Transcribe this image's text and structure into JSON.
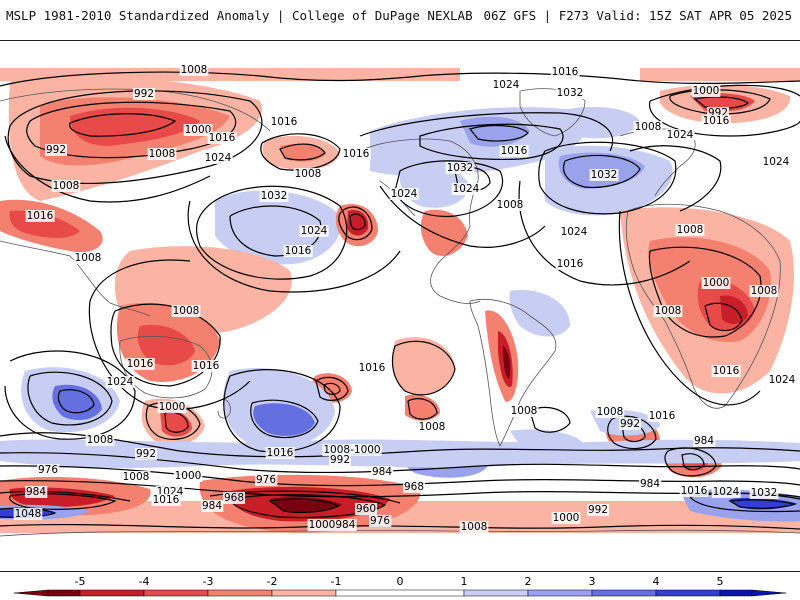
{
  "header": {
    "left_title": "MSLP 1981-2010 Standardized Anomaly | College of DuPage NEXLAB",
    "right_title": "06Z GFS | F273 Valid: 15Z SAT APR 05 2025"
  },
  "colors": {
    "neg_5": "#7a0010",
    "neg_4": "#c81e28",
    "neg_3": "#e84a4a",
    "neg_2": "#f48070",
    "neg_1": "#fbb4a4",
    "zero": "#ffffff",
    "pos_1": "#c8cdf4",
    "pos_2": "#9aa2ec",
    "pos_3": "#6470e0",
    "pos_4": "#323ed4",
    "pos_5": "#0a14b4",
    "isobar": "#000000",
    "coastline": "#555555"
  },
  "isobar_labels": [
    {
      "id": "iso-1008-north-pacific",
      "text": "1008"
    },
    {
      "id": "iso-992-asia",
      "text": "992"
    },
    {
      "id": "iso-992-asia-west",
      "text": "992"
    },
    {
      "id": "iso-1000-asia",
      "text": "1000"
    },
    {
      "id": "iso-1016-asia",
      "text": "1016"
    },
    {
      "id": "iso-1008-asia-a",
      "text": "1008"
    },
    {
      "id": "iso-1008-asia-b",
      "text": "1008"
    },
    {
      "id": "iso-1016-asia-b",
      "text": "1016"
    },
    {
      "id": "iso-1008-asia-c",
      "text": "1008"
    },
    {
      "id": "iso-1024-pacific",
      "text": "1024"
    },
    {
      "id": "iso-1032-pacific",
      "text": "1032"
    },
    {
      "id": "iso-1008-pacific-a",
      "text": "1008"
    },
    {
      "id": "iso-1016-pacific-a",
      "text": "1016"
    },
    {
      "id": "iso-1016-pacific-b",
      "text": "1016"
    },
    {
      "id": "iso-1024-pacific-b",
      "text": "1024"
    },
    {
      "id": "iso-1016-pacific-c",
      "text": "1016"
    },
    {
      "id": "iso-1016-arctic",
      "text": "1016"
    },
    {
      "id": "iso-1024-arctic",
      "text": "1024"
    },
    {
      "id": "iso-1032-arctic",
      "text": "1032"
    },
    {
      "id": "iso-1016-canada",
      "text": "1016"
    },
    {
      "id": "iso-1032-canada",
      "text": "1032"
    },
    {
      "id": "iso-1024-canada",
      "text": "1024"
    },
    {
      "id": "iso-1024-us",
      "text": "1024"
    },
    {
      "id": "iso-1008-us",
      "text": "1008"
    },
    {
      "id": "iso-1024-atlantic",
      "text": "1024"
    },
    {
      "id": "iso-1016-atlantic",
      "text": "1016"
    },
    {
      "id": "iso-1032-atlantic",
      "text": "1032"
    },
    {
      "id": "iso-1008-europe",
      "text": "1008"
    },
    {
      "id": "iso-1024-europe",
      "text": "1024"
    },
    {
      "id": "iso-1000-siberia",
      "text": "1000"
    },
    {
      "id": "iso-992-siberia",
      "text": "992"
    },
    {
      "id": "iso-1024-siberia",
      "text": "1024"
    },
    {
      "id": "iso-1016-siberia",
      "text": "1016"
    },
    {
      "id": "iso-1008-africa",
      "text": "1008"
    },
    {
      "id": "iso-1000-africa",
      "text": "1000"
    },
    {
      "id": "iso-1008-africa-b",
      "text": "1008"
    },
    {
      "id": "iso-1008-africa-c",
      "text": "1008"
    },
    {
      "id": "iso-1016-africa",
      "text": "1016"
    },
    {
      "id": "iso-1024-indian",
      "text": "1024"
    },
    {
      "id": "iso-1008-maritime",
      "text": "1008"
    },
    {
      "id": "iso-1016-maritime",
      "text": "1016"
    },
    {
      "id": "iso-1016-australia",
      "text": "1016"
    },
    {
      "id": "iso-1024-indian-ocean",
      "text": "1024"
    },
    {
      "id": "iso-1000-sw-pacific",
      "text": "1000"
    },
    {
      "id": "iso-1008-sw-pacific",
      "text": "1008"
    },
    {
      "id": "iso-992-sw-pacific",
      "text": "992"
    },
    {
      "id": "iso-1016-south-pacific",
      "text": "1016"
    },
    {
      "id": "iso-1008-south-pacific",
      "text": "1008"
    },
    {
      "id": "iso-1008-1000-south",
      "text": "1008-1000"
    },
    {
      "id": "iso-992-south",
      "text": "992"
    },
    {
      "id": "iso-984-south",
      "text": "984"
    },
    {
      "id": "iso-1016-south-pacific-b",
      "text": "1016"
    },
    {
      "id": "iso-1008-south-atlantic",
      "text": "1008"
    },
    {
      "id": "iso-1008-south-atlantic-b",
      "text": "1008"
    },
    {
      "id": "iso-1016-south-indian",
      "text": "1016"
    },
    {
      "id": "iso-992-south-indian",
      "text": "992"
    },
    {
      "id": "iso-984-south-indian",
      "text": "984"
    },
    {
      "id": "iso-976-antarctic",
      "text": "976"
    },
    {
      "id": "iso-1000-antarctic-a",
      "text": "1000"
    },
    {
      "id": "iso-1008-antarctic",
      "text": "1008"
    },
    {
      "id": "iso-984-antarctic-a",
      "text": "984"
    },
    {
      "id": "iso-1024-antarctic",
      "text": "1024"
    },
    {
      "id": "iso-1016-antarctic",
      "text": "1016"
    },
    {
      "id": "iso-1048-antarctic",
      "text": "1048"
    },
    {
      "id": "iso-968-antarctic",
      "text": "968"
    },
    {
      "id": "iso-984-antarctic-b",
      "text": "984"
    },
    {
      "id": "iso-976-antarctic-b",
      "text": "976"
    },
    {
      "id": "iso-960-antarctic",
      "text": "960"
    },
    {
      "id": "iso-968-antarctic-b",
      "text": "968"
    },
    {
      "id": "iso-1000-984-antarctic",
      "text": "1000984"
    },
    {
      "id": "iso-976-antarctic-c",
      "text": "976"
    },
    {
      "id": "iso-1008-antarctic-b",
      "text": "1008"
    },
    {
      "id": "iso-1000-antarctic-b",
      "text": "1000"
    },
    {
      "id": "iso-992-antarctic",
      "text": "992"
    },
    {
      "id": "iso-984-antarctic-c",
      "text": "984"
    },
    {
      "id": "iso-1016-antarctic-b",
      "text": "1016"
    },
    {
      "id": "iso-1024-antarctic-b",
      "text": "1024"
    },
    {
      "id": "iso-1032-antarctic",
      "text": "1032"
    }
  ],
  "colorbar": {
    "ticks": [
      "-5",
      "-4",
      "-3",
      "-2",
      "-1",
      "0",
      "1",
      "2",
      "3",
      "4",
      "5"
    ]
  }
}
